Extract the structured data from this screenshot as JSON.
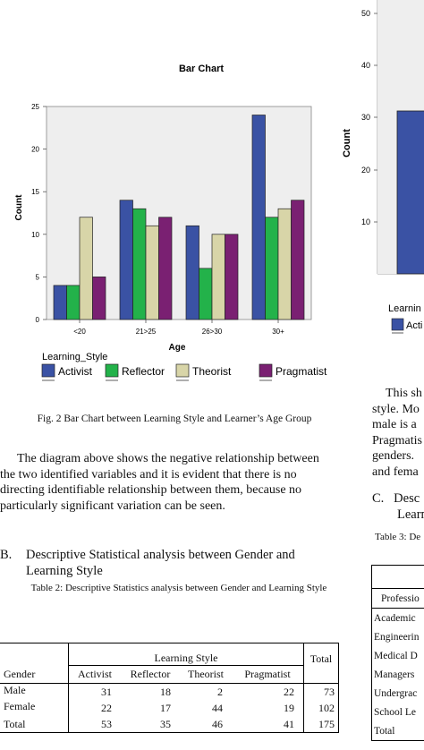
{
  "figure": {
    "caption": "Fig. 2 Bar Chart between Learning Style and Learner’s Age Group"
  },
  "chart_data": {
    "type": "bar",
    "title": "Bar Chart",
    "xlabel": "Age",
    "ylabel": "Count",
    "categories": [
      "<20",
      "21>25",
      "26>30",
      "30+"
    ],
    "ylim": [
      0,
      25
    ],
    "yticks": [
      "0",
      "5",
      "10",
      "15",
      "20",
      "25"
    ],
    "legend_title": "Learning_Style",
    "legend_position": "bottom-left",
    "series": [
      {
        "name": "Activist",
        "color": "#3A52A4",
        "values": [
          4,
          14,
          11,
          24
        ]
      },
      {
        "name": "Reflector",
        "color": "#23B24A",
        "values": [
          4,
          13,
          6,
          12
        ]
      },
      {
        "name": "Theorist",
        "color": "#D8D5A8",
        "values": [
          12,
          11,
          10,
          13
        ]
      },
      {
        "name": "Pragmatist",
        "color": "#7A2072",
        "values": [
          5,
          12,
          10,
          14
        ]
      }
    ]
  },
  "right_chart": {
    "ylabel": "Count",
    "yticks": [
      "10",
      "20",
      "30",
      "40",
      "50"
    ],
    "legend_fragment": "Learnin",
    "legend_item_fragment": "Acti",
    "bar_color": "#3A52A4",
    "bar_value": 31
  },
  "paragraph": {
    "lines": [
      "The diagram above shows the negative relationship between",
      "the two identified variables and it is evident that there is no",
      "directing identifiable relationship between them, because no",
      "particularly significant variation can be seen."
    ]
  },
  "section_b": {
    "number": "B.",
    "title_line1": "Descriptive Statistical analysis between Gender and",
    "title_line2": "Learning Style"
  },
  "table2": {
    "caption": "Table 2: Descriptive Statistics analysis between Gender and Learning Style",
    "group_header": "Learning Style",
    "total_header": "Total",
    "row_header": "Gender",
    "columns": [
      "Activist",
      "Reflector",
      "Theorist",
      "Pragmatist"
    ],
    "rows": [
      {
        "label": "Male",
        "values": [
          "31",
          "18",
          "2",
          "22"
        ],
        "total": "73"
      },
      {
        "label": "Female",
        "values": [
          "22",
          "17",
          "44",
          "19"
        ],
        "total": "102"
      },
      {
        "label": "Total",
        "values": [
          "53",
          "35",
          "46",
          "41"
        ],
        "total": "175"
      }
    ]
  },
  "right_column": {
    "para_lines": [
      "This sh",
      "style. Mo",
      "male is a",
      "Pragmatis",
      "genders.",
      "and fema"
    ],
    "section_c_line1": "C.   Desc",
    "section_c_line2": "Learn",
    "table3_caption": "Table 3: De",
    "table3_header": "Professio",
    "table3_rows": [
      "Academic",
      "Engineerin",
      "Medical D",
      "Managers",
      "Undergrac",
      "School Le",
      "Total"
    ]
  }
}
